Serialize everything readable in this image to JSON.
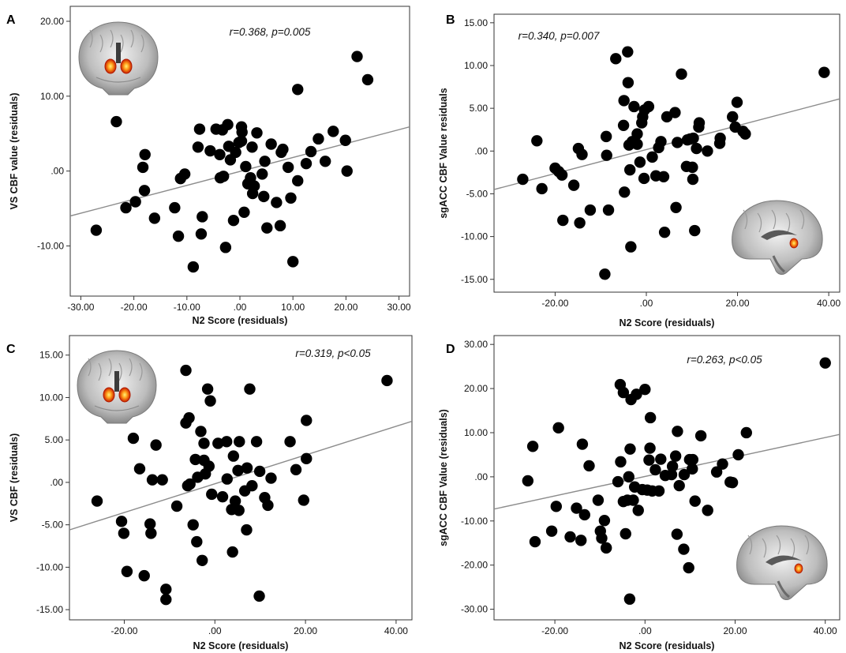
{
  "chart_data": [
    {
      "panel": "A",
      "type": "scatter",
      "annotation": "r=0.368, p=0.005",
      "xlabel": "N2 Score (residuals)",
      "ylabel": "VS CBF value (residuals)",
      "xlim": [
        -32,
        32
      ],
      "ylim": [
        -16.7,
        22
      ],
      "xticks": [
        -30,
        -20,
        -10,
        0,
        10,
        20,
        30
      ],
      "xtick_labels": [
        "-30.00",
        "-20.00",
        "-10.00",
        ".00",
        "10.00",
        "20.00",
        "30.00"
      ],
      "yticks": [
        -10,
        0,
        10,
        20
      ],
      "ytick_labels": [
        "-10.00",
        ".00",
        "10.00",
        "20.00"
      ],
      "fit_line": {
        "x": [
          -32,
          32
        ],
        "y": [
          -6.0,
          5.9
        ]
      },
      "inset_icon": "brain-coronal-icon",
      "points": [
        [
          22.1,
          15.3
        ],
        [
          24.1,
          12.2
        ],
        [
          -23.3,
          6.6
        ],
        [
          10.9,
          10.9
        ],
        [
          -27.1,
          -7.9
        ],
        [
          -21.5,
          -4.9
        ],
        [
          -19.7,
          -4.1
        ],
        [
          -18.0,
          -2.6
        ],
        [
          -18.3,
          0.5
        ],
        [
          -17.9,
          2.2
        ],
        [
          -16.1,
          -6.3
        ],
        [
          -12.3,
          -4.9
        ],
        [
          -11.6,
          -8.7
        ],
        [
          -11.2,
          -1.0
        ],
        [
          -10.4,
          -0.4
        ],
        [
          -8.8,
          -12.8
        ],
        [
          -7.9,
          3.2
        ],
        [
          -7.6,
          5.6
        ],
        [
          -7.3,
          -8.4
        ],
        [
          -7.1,
          -6.1
        ],
        [
          -5.6,
          2.7
        ],
        [
          -4.5,
          5.6
        ],
        [
          -3.8,
          2.2
        ],
        [
          -3.7,
          -0.9
        ],
        [
          -3.3,
          5.5
        ],
        [
          -3.1,
          -0.7
        ],
        [
          -2.7,
          -10.2
        ],
        [
          -2.3,
          6.2
        ],
        [
          -2.1,
          3.3
        ],
        [
          -1.8,
          1.5
        ],
        [
          -1.2,
          -6.6
        ],
        [
          -0.8,
          2.5
        ],
        [
          -0.2,
          3.8
        ],
        [
          0.3,
          4.0
        ],
        [
          0.3,
          5.9
        ],
        [
          0.4,
          5.2
        ],
        [
          0.8,
          -5.5
        ],
        [
          1.1,
          0.6
        ],
        [
          1.5,
          -1.7
        ],
        [
          2.0,
          -0.9
        ],
        [
          2.3,
          3.2
        ],
        [
          2.4,
          -3.0
        ],
        [
          2.7,
          -2.0
        ],
        [
          3.2,
          5.1
        ],
        [
          4.2,
          -0.4
        ],
        [
          4.5,
          -3.4
        ],
        [
          4.7,
          1.3
        ],
        [
          5.1,
          -7.6
        ],
        [
          5.9,
          3.6
        ],
        [
          6.9,
          -4.2
        ],
        [
          7.6,
          -7.3
        ],
        [
          7.8,
          2.5
        ],
        [
          8.1,
          2.9
        ],
        [
          9.1,
          0.5
        ],
        [
          9.6,
          -3.6
        ],
        [
          10.0,
          -12.1
        ],
        [
          10.9,
          -1.3
        ],
        [
          12.5,
          1.0
        ],
        [
          13.4,
          2.6
        ],
        [
          14.8,
          4.3
        ],
        [
          16.1,
          1.3
        ],
        [
          17.6,
          5.3
        ],
        [
          19.9,
          4.1
        ],
        [
          20.2,
          0.0
        ]
      ]
    },
    {
      "panel": "B",
      "type": "scatter",
      "annotation": "r=0.340, p=0.007",
      "xlabel": "N2 Score (residuals)",
      "ylabel": "sgACC CBF Value residuals",
      "xlim": [
        -33.4,
        42.4
      ],
      "ylim": [
        -16.5,
        16.0
      ],
      "xticks": [
        -20,
        0,
        20,
        40
      ],
      "xtick_labels": [
        "-20.00",
        ".00",
        "20.00",
        "40.00"
      ],
      "yticks": [
        -15,
        -10,
        -5,
        0,
        5,
        10,
        15
      ],
      "ytick_labels": [
        "-15.00",
        "-10.00",
        "-5.00",
        ".00",
        "5.00",
        "10.00",
        "15.00"
      ],
      "fit_line": {
        "x": [
          -33.4,
          42.4
        ],
        "y": [
          -4.5,
          6.1
        ]
      },
      "inset_icon": "brain-sagittal-icon",
      "points": [
        [
          39.0,
          9.2
        ],
        [
          -27.1,
          -3.3
        ],
        [
          -24.0,
          1.2
        ],
        [
          -22.9,
          -4.4
        ],
        [
          -20.0,
          -2.0
        ],
        [
          -19.2,
          -2.4
        ],
        [
          -18.5,
          -2.8
        ],
        [
          -18.3,
          -8.1
        ],
        [
          -15.9,
          -4.0
        ],
        [
          -14.9,
          0.3
        ],
        [
          -14.6,
          -8.4
        ],
        [
          -14.1,
          -0.4
        ],
        [
          -12.3,
          -6.9
        ],
        [
          -9.1,
          -14.4
        ],
        [
          -8.8,
          1.7
        ],
        [
          -8.7,
          -0.5
        ],
        [
          -8.3,
          -6.9
        ],
        [
          -6.7,
          10.8
        ],
        [
          -5.0,
          3.0
        ],
        [
          -4.9,
          5.9
        ],
        [
          -4.8,
          -4.8
        ],
        [
          -4.1,
          11.6
        ],
        [
          -4.0,
          8.0
        ],
        [
          -3.8,
          0.7
        ],
        [
          -3.6,
          -2.2
        ],
        [
          -3.4,
          -11.2
        ],
        [
          -3.1,
          1.1
        ],
        [
          -2.7,
          5.2
        ],
        [
          -2.0,
          2.0
        ],
        [
          -2.0,
          0.8
        ],
        [
          -1.4,
          -1.3
        ],
        [
          -1.0,
          3.3
        ],
        [
          -0.8,
          4.0
        ],
        [
          -0.5,
          -3.2
        ],
        [
          -0.4,
          4.8
        ],
        [
          0.5,
          5.2
        ],
        [
          1.3,
          -0.7
        ],
        [
          2.1,
          -2.9
        ],
        [
          2.7,
          0.4
        ],
        [
          3.2,
          1.1
        ],
        [
          3.8,
          -3.0
        ],
        [
          4.0,
          -9.5
        ],
        [
          4.5,
          4.0
        ],
        [
          6.3,
          4.5
        ],
        [
          6.5,
          -6.6
        ],
        [
          6.8,
          1.0
        ],
        [
          7.7,
          9.0
        ],
        [
          8.8,
          -1.8
        ],
        [
          9.0,
          1.3
        ],
        [
          9.6,
          1.4
        ],
        [
          10.1,
          -1.9
        ],
        [
          10.2,
          -3.3
        ],
        [
          10.3,
          1.5
        ],
        [
          10.6,
          -9.3
        ],
        [
          11.0,
          0.3
        ],
        [
          11.5,
          2.8
        ],
        [
          11.6,
          3.3
        ],
        [
          13.4,
          0.0
        ],
        [
          16.1,
          0.9
        ],
        [
          16.2,
          1.5
        ],
        [
          18.9,
          4.0
        ],
        [
          19.5,
          2.8
        ],
        [
          19.9,
          5.7
        ],
        [
          21.2,
          2.3
        ],
        [
          21.7,
          2.0
        ]
      ]
    },
    {
      "panel": "C",
      "type": "scatter",
      "annotation": "r=0.319, p<0.05",
      "xlabel": "N2 Score (residuals)",
      "ylabel": "VS CBF (residuals)",
      "xlim": [
        -32.1,
        43.5
      ],
      "ylim": [
        -16.2,
        17.3
      ],
      "xticks": [
        -20,
        0,
        20,
        40
      ],
      "xtick_labels": [
        "-20.00",
        ".00",
        "20.00",
        "40.00"
      ],
      "yticks": [
        -15,
        -10,
        -5,
        0,
        5,
        10,
        15
      ],
      "ytick_labels": [
        "-15.00",
        "-10.00",
        "-5.00",
        ".00",
        "5.00",
        "10.00",
        "15.00"
      ],
      "fit_line": {
        "x": [
          -32.1,
          43.5
        ],
        "y": [
          -5.6,
          7.2
        ]
      },
      "inset_icon": "brain-coronal-icon",
      "points": [
        [
          38.0,
          12.0
        ],
        [
          -26.0,
          -2.2
        ],
        [
          -20.6,
          -4.6
        ],
        [
          -20.1,
          -6.0
        ],
        [
          -19.4,
          -10.5
        ],
        [
          -18.0,
          5.2
        ],
        [
          -16.6,
          1.6
        ],
        [
          -15.6,
          -11.0
        ],
        [
          -14.3,
          -4.9
        ],
        [
          -14.1,
          -6.0
        ],
        [
          -13.8,
          0.3
        ],
        [
          -13.0,
          4.4
        ],
        [
          -11.6,
          0.3
        ],
        [
          -10.8,
          -12.6
        ],
        [
          -10.8,
          -13.8
        ],
        [
          -8.4,
          -2.8
        ],
        [
          -6.4,
          13.2
        ],
        [
          -6.4,
          7.0
        ],
        [
          -6.0,
          -0.4
        ],
        [
          -5.7,
          7.6
        ],
        [
          -5.5,
          -0.2
        ],
        [
          -4.8,
          -5.0
        ],
        [
          -4.3,
          2.7
        ],
        [
          -4.0,
          -7.0
        ],
        [
          -3.8,
          0.6
        ],
        [
          -3.1,
          6.0
        ],
        [
          -2.8,
          -9.2
        ],
        [
          -2.4,
          2.6
        ],
        [
          -2.4,
          4.6
        ],
        [
          -2.1,
          1.0
        ],
        [
          -1.6,
          11.0
        ],
        [
          -1.3,
          1.9
        ],
        [
          -1.0,
          9.6
        ],
        [
          -0.7,
          -1.4
        ],
        [
          0.7,
          4.6
        ],
        [
          1.7,
          -1.7
        ],
        [
          2.6,
          4.8
        ],
        [
          2.7,
          0.4
        ],
        [
          3.7,
          -3.2
        ],
        [
          3.9,
          -8.2
        ],
        [
          4.1,
          3.1
        ],
        [
          4.5,
          -2.2
        ],
        [
          5.1,
          1.4
        ],
        [
          5.3,
          -3.3
        ],
        [
          5.4,
          4.8
        ],
        [
          6.6,
          -1.0
        ],
        [
          7.0,
          -5.6
        ],
        [
          7.1,
          1.7
        ],
        [
          7.7,
          11.0
        ],
        [
          8.2,
          -0.4
        ],
        [
          9.2,
          4.8
        ],
        [
          9.8,
          -13.4
        ],
        [
          9.9,
          1.3
        ],
        [
          11.0,
          -1.8
        ],
        [
          11.7,
          -2.7
        ],
        [
          12.4,
          0.5
        ],
        [
          16.6,
          4.8
        ],
        [
          17.9,
          1.5
        ],
        [
          19.6,
          -2.1
        ],
        [
          20.2,
          7.3
        ],
        [
          20.2,
          2.8
        ]
      ]
    },
    {
      "panel": "D",
      "type": "scatter",
      "annotation": "r=0.263, p<0.05",
      "xlabel": "N2 Score (residuals)",
      "ylabel": "sgACC CBF Value (residuals)",
      "xlim": [
        -33.5,
        43.2
      ],
      "ylim": [
        -32.4,
        32.0
      ],
      "xticks": [
        -20,
        0,
        20,
        40
      ],
      "xtick_labels": [
        "-20.00",
        ".00",
        "20.00",
        "40.00"
      ],
      "yticks": [
        -30,
        -20,
        -10,
        0,
        10,
        20,
        30
      ],
      "ytick_labels": [
        "-30.00",
        "-20.00",
        "-10.00",
        ".00",
        "10.00",
        "20.00",
        "30.00"
      ],
      "fit_line": {
        "x": [
          -33.5,
          43.2
        ],
        "y": [
          -7.3,
          9.6
        ]
      },
      "inset_icon": "brain-sagittal-icon",
      "points": [
        [
          40.0,
          25.8
        ],
        [
          -26.0,
          -0.9
        ],
        [
          -24.9,
          6.9
        ],
        [
          -24.4,
          -14.7
        ],
        [
          -20.7,
          -12.3
        ],
        [
          -19.7,
          -6.7
        ],
        [
          -19.2,
          11.1
        ],
        [
          -16.6,
          -13.6
        ],
        [
          -15.2,
          -7.1
        ],
        [
          -14.2,
          -14.4
        ],
        [
          -13.9,
          7.4
        ],
        [
          -13.4,
          -8.6
        ],
        [
          -12.4,
          2.5
        ],
        [
          -10.4,
          -5.3
        ],
        [
          -9.9,
          -12.3
        ],
        [
          -9.6,
          -13.9
        ],
        [
          -9.0,
          -9.9
        ],
        [
          -8.6,
          -16.1
        ],
        [
          -6.0,
          -1.1
        ],
        [
          -5.5,
          20.9
        ],
        [
          -5.4,
          3.4
        ],
        [
          -4.8,
          19.1
        ],
        [
          -4.8,
          -5.6
        ],
        [
          -4.3,
          -12.9
        ],
        [
          -3.9,
          -5.3
        ],
        [
          -3.6,
          0.0
        ],
        [
          -3.4,
          -27.7
        ],
        [
          -3.3,
          6.3
        ],
        [
          -3.1,
          17.5
        ],
        [
          -2.6,
          -5.3
        ],
        [
          -2.3,
          -2.3
        ],
        [
          -1.9,
          18.7
        ],
        [
          -1.5,
          -7.6
        ],
        [
          -0.6,
          -2.9
        ],
        [
          0.0,
          19.8
        ],
        [
          0.5,
          -3.0
        ],
        [
          0.9,
          3.8
        ],
        [
          1.1,
          6.5
        ],
        [
          1.2,
          13.4
        ],
        [
          1.6,
          -3.2
        ],
        [
          2.3,
          1.6
        ],
        [
          3.1,
          -3.2
        ],
        [
          3.5,
          4.0
        ],
        [
          4.5,
          0.3
        ],
        [
          5.9,
          0.5
        ],
        [
          6.1,
          2.4
        ],
        [
          6.8,
          4.7
        ],
        [
          7.1,
          -13.0
        ],
        [
          7.2,
          10.3
        ],
        [
          7.6,
          -2.0
        ],
        [
          8.6,
          -16.4
        ],
        [
          8.7,
          0.5
        ],
        [
          9.7,
          -20.6
        ],
        [
          9.9,
          3.9
        ],
        [
          10.5,
          1.8
        ],
        [
          10.6,
          3.9
        ],
        [
          11.1,
          -5.5
        ],
        [
          12.4,
          9.3
        ],
        [
          13.9,
          -7.6
        ],
        [
          15.9,
          1.1
        ],
        [
          17.2,
          2.9
        ],
        [
          18.9,
          -1.2
        ],
        [
          19.4,
          -1.3
        ],
        [
          20.7,
          5.0
        ],
        [
          22.5,
          10.0
        ]
      ]
    }
  ]
}
